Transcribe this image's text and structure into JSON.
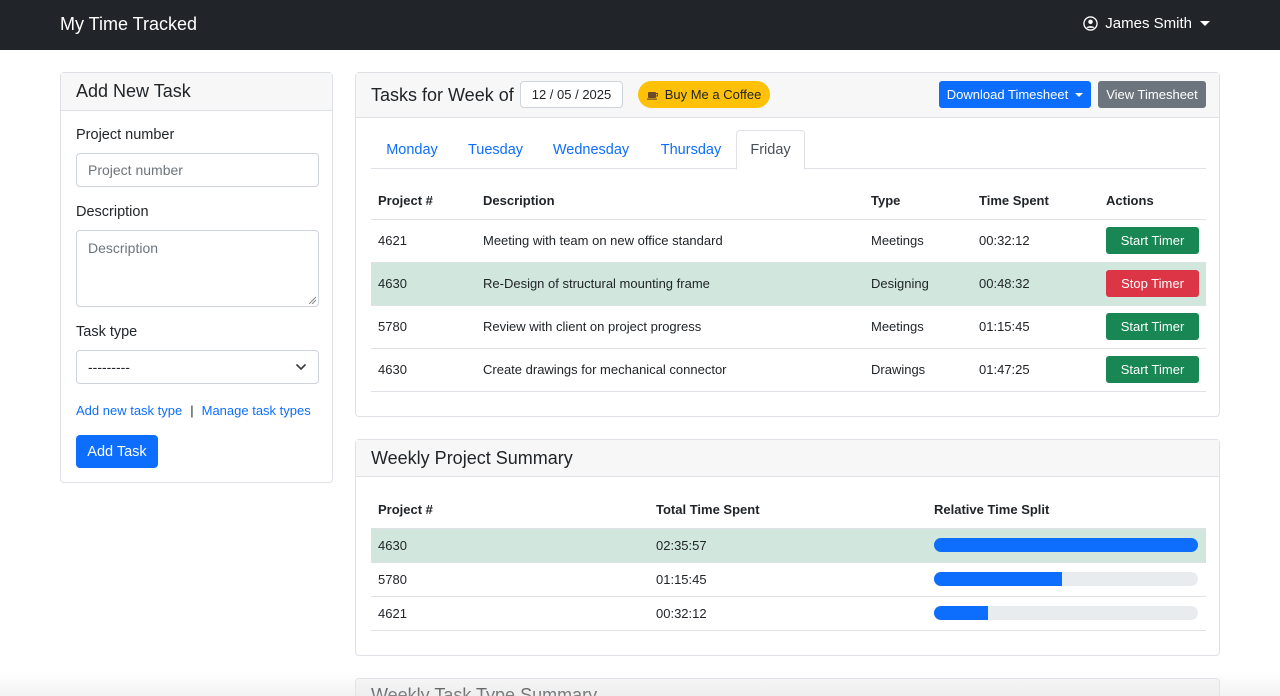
{
  "navbar": {
    "brand": "My Time Tracked",
    "user_name": "James Smith"
  },
  "add_task": {
    "title": "Add New Task",
    "project_label": "Project number",
    "project_placeholder": "Project number",
    "description_label": "Description",
    "description_placeholder": "Description",
    "task_type_label": "Task type",
    "task_type_value": "---------",
    "add_type_link": "Add new task type",
    "separator": "|",
    "manage_types_link": "Manage task types",
    "submit_label": "Add Task"
  },
  "tasks": {
    "title": "Tasks for Week of",
    "week_date": "12 / 05 / 2025",
    "coffee_label": "Buy Me a Coffee",
    "download_label": "Download Timesheet",
    "view_label": "View Timesheet",
    "tabs": [
      "Monday",
      "Tuesday",
      "Wednesday",
      "Thursday",
      "Friday"
    ],
    "active_tab": "Friday",
    "columns": [
      "Project #",
      "Description",
      "Type",
      "Time Spent",
      "Actions"
    ],
    "rows": [
      {
        "project": "4621",
        "description": "Meeting with team on new office standard",
        "type": "Meetings",
        "time": "00:32:12",
        "action": "Start Timer"
      },
      {
        "project": "4630",
        "description": "Re-Design of structural mounting frame",
        "type": "Designing",
        "time": "00:48:32",
        "action": "Stop Timer"
      },
      {
        "project": "5780",
        "description": "Review with client on project progress",
        "type": "Meetings",
        "time": "01:15:45",
        "action": "Start Timer"
      },
      {
        "project": "4630",
        "description": "Create drawings for mechanical connector",
        "type": "Drawings",
        "time": "01:47:25",
        "action": "Start Timer"
      }
    ]
  },
  "summary": {
    "title": "Weekly Project Summary",
    "columns": [
      "Project #",
      "Total Time Spent",
      "Relative Time Split"
    ],
    "rows": [
      {
        "project": "4630",
        "total": "02:35:57",
        "split_fraction": 1.0
      },
      {
        "project": "5780",
        "total": "01:15:45",
        "split_fraction": 0.486
      },
      {
        "project": "4621",
        "total": "00:32:12",
        "split_fraction": 0.206
      }
    ]
  },
  "task_type_summary": {
    "title": "Weekly Task Type Summary"
  },
  "colors": {
    "navbar": "#212529",
    "primary": "#0d6efd",
    "success": "#198754",
    "danger": "#dc3545",
    "warning": "#ffc107",
    "secondary": "#6c757d",
    "highlight_row": "#d1e7dd"
  },
  "icons": {
    "user": "user-circle-icon",
    "coffee": "coffee-icon",
    "dropdown": "chevron-down-icon"
  }
}
